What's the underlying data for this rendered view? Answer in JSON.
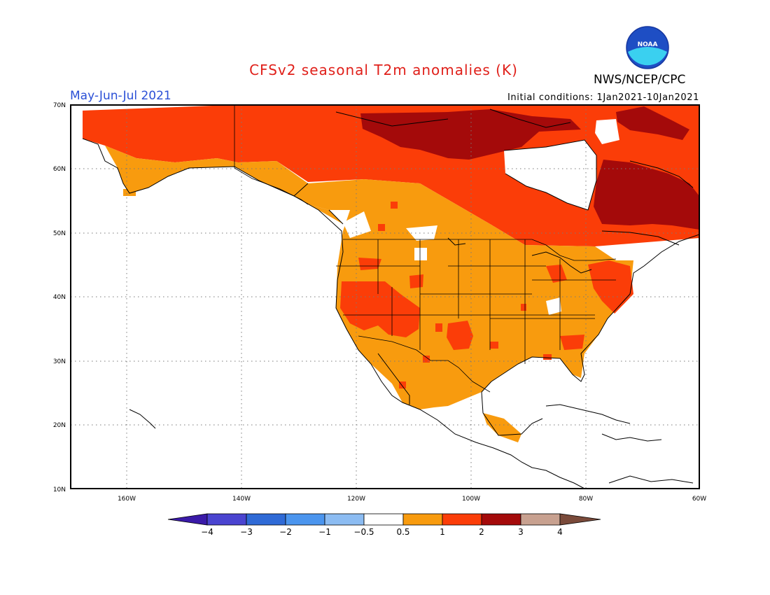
{
  "header": {
    "title": "CFSv2 seasonal T2m anomalies (K)",
    "agency": "NWS/NCEP/CPC",
    "logo_text": "NOAA",
    "season": "May-Jun-Jul 2021",
    "initial_conditions": "Initial conditions: 1Jan2021-10Jan2021"
  },
  "axes": {
    "lat_ticks": [
      "70N",
      "60N",
      "50N",
      "40N",
      "30N",
      "20N",
      "10N"
    ],
    "lon_ticks": [
      "160W",
      "140W",
      "120W",
      "100W",
      "80W",
      "60W"
    ]
  },
  "colorbar": {
    "labels": [
      "-4",
      "-3",
      "-2",
      "-1",
      "-0.5",
      "0.5",
      "1",
      "2",
      "3",
      "4"
    ],
    "colors": [
      "#3a1aa8",
      "#4a44d0",
      "#2f6ad6",
      "#4b95ee",
      "#8cbcf2",
      "#ffffff",
      "#f89b0e",
      "#fb3d08",
      "#a40a0a",
      "#c8a190",
      "#7a4a3a"
    ]
  },
  "legend_colors": {
    "c05_1": "#f89b0e",
    "c1_2": "#fb3d08",
    "c2_3": "#a40a0a"
  }
}
